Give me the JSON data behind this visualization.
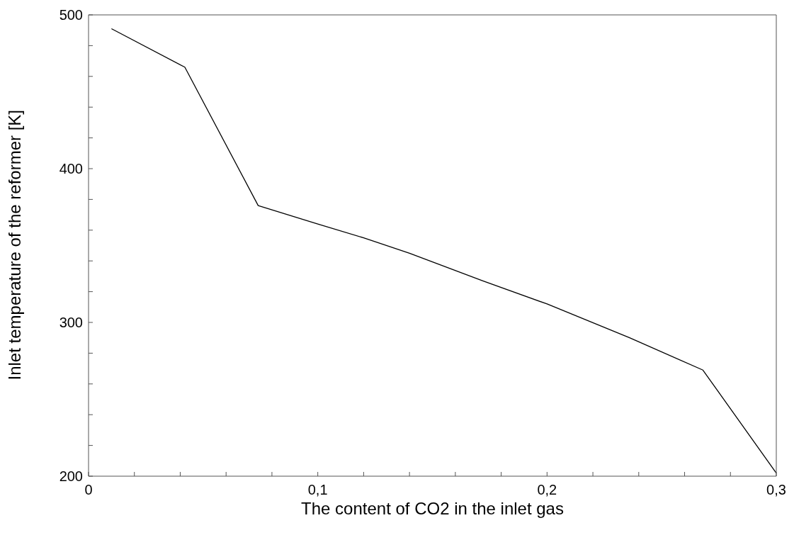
{
  "chart_data": {
    "type": "line",
    "xlabel": "The content of CO2 in the inlet gas",
    "ylabel": "Inlet temperature of the reformer [K]",
    "x": [
      0.01,
      0.042,
      0.074,
      0.1,
      0.12,
      0.14,
      0.172,
      0.2,
      0.236,
      0.268,
      0.3
    ],
    "series": [
      {
        "color": "#000000",
        "values": [
          491,
          466,
          376,
          364,
          355,
          345,
          327,
          312,
          290,
          269,
          202
        ]
      }
    ],
    "xlim": [
      0,
      0.3
    ],
    "xticks": [
      0,
      {
        "value": 0.02,
        "label": null
      },
      {
        "value": 0.04,
        "label": null
      },
      {
        "value": 0.06,
        "label": null
      },
      {
        "value": 0.08,
        "label": null
      },
      {
        "value": 0.1,
        "label": "0,1"
      },
      {
        "value": 0.12,
        "label": null
      },
      {
        "value": 0.14,
        "label": null
      },
      {
        "value": 0.16,
        "label": null
      },
      {
        "value": 0.18,
        "label": null
      },
      {
        "value": 0.2,
        "label": "0,2"
      },
      {
        "value": 0.22,
        "label": null
      },
      {
        "value": 0.24,
        "label": null
      },
      {
        "value": 0.26,
        "label": null
      },
      {
        "value": 0.28,
        "label": null
      },
      {
        "value": 0.3,
        "label": "0,3"
      }
    ],
    "ylim": [
      200,
      500
    ],
    "yticks": [
      200,
      {
        "value": 220,
        "label": null
      },
      {
        "value": 240,
        "label": null
      },
      {
        "value": 260,
        "label": null
      },
      {
        "value": 280,
        "label": null
      },
      300,
      {
        "value": 320,
        "label": null
      },
      {
        "value": 340,
        "label": null
      },
      {
        "value": 360,
        "label": null
      },
      {
        "value": 380,
        "label": null
      },
      400,
      {
        "value": 420,
        "label": null
      },
      {
        "value": 440,
        "label": null
      },
      {
        "value": 460,
        "label": null
      },
      {
        "value": 480,
        "label": null
      },
      500
    ],
    "grid": false,
    "legend": false,
    "marker": "none",
    "line_style": "solid"
  }
}
